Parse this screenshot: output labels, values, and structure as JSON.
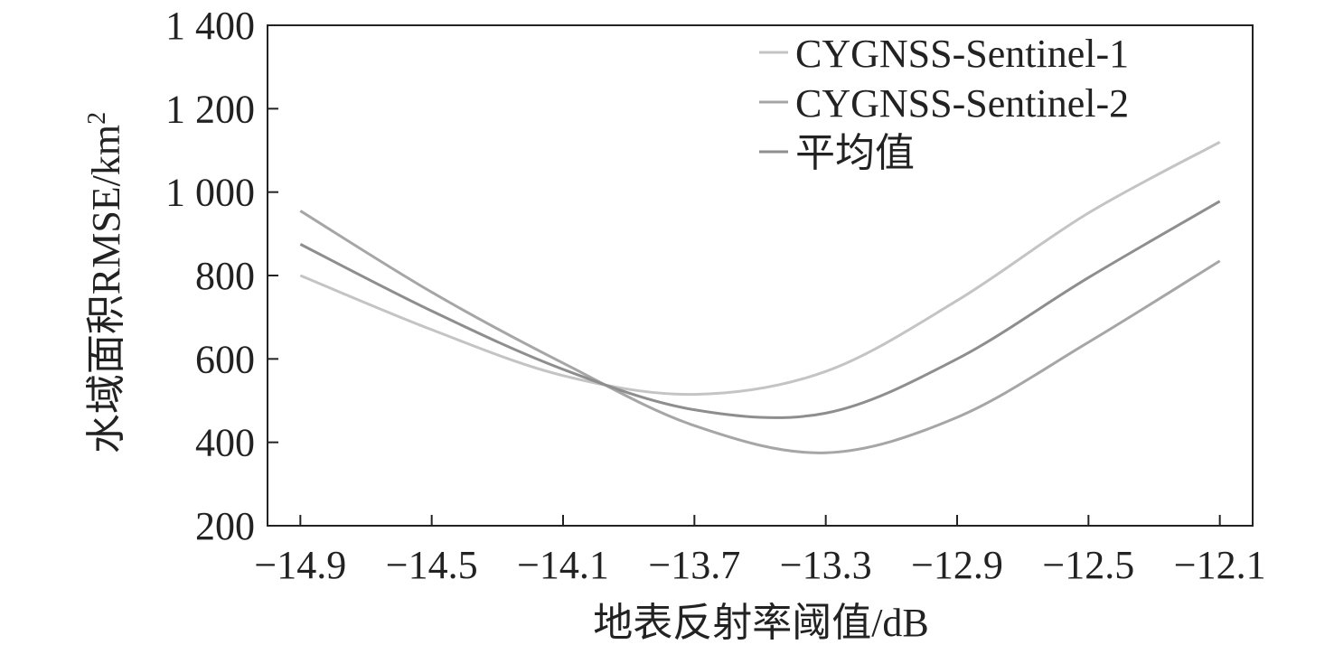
{
  "chart_data": {
    "type": "line",
    "title": "",
    "xlabel": "地表反射率阈值/dB",
    "ylabel": "水域面积RMSE/km",
    "ylabel_superscript": "2",
    "xlim": [
      -15.0,
      -12.0
    ],
    "ylim": [
      200,
      1400
    ],
    "xticks": [
      -14.9,
      -14.5,
      -14.1,
      -13.7,
      -13.3,
      -12.9,
      -12.5,
      -12.1
    ],
    "xtick_labels": [
      "−14.9",
      "−14.5",
      "−14.1",
      "−13.7",
      "−13.3",
      "−12.9",
      "−12.5",
      "−12.1"
    ],
    "yticks": [
      200,
      400,
      600,
      800,
      1000,
      1200,
      1400
    ],
    "ytick_labels": [
      "200",
      "400",
      "600",
      "800",
      "1 000",
      "1 200",
      "1 400"
    ],
    "grid": false,
    "legend_position": "top-right",
    "x": [
      -14.9,
      -14.5,
      -14.1,
      -13.7,
      -13.3,
      -12.9,
      -12.5,
      -12.1
    ],
    "series": [
      {
        "name": "CYGNSS-Sentinel-1",
        "color": "#c4c4c4",
        "values": [
          800,
          670,
          560,
          515,
          570,
          740,
          950,
          1120
        ]
      },
      {
        "name": "CYGNSS-Sentinel-2",
        "color": "#a6a6a6",
        "values": [
          955,
          760,
          590,
          440,
          375,
          460,
          640,
          835
        ]
      },
      {
        "name": "平均值",
        "color": "#8e8e8e",
        "values": [
          875,
          715,
          575,
          478,
          470,
          600,
          795,
          978
        ]
      }
    ]
  }
}
